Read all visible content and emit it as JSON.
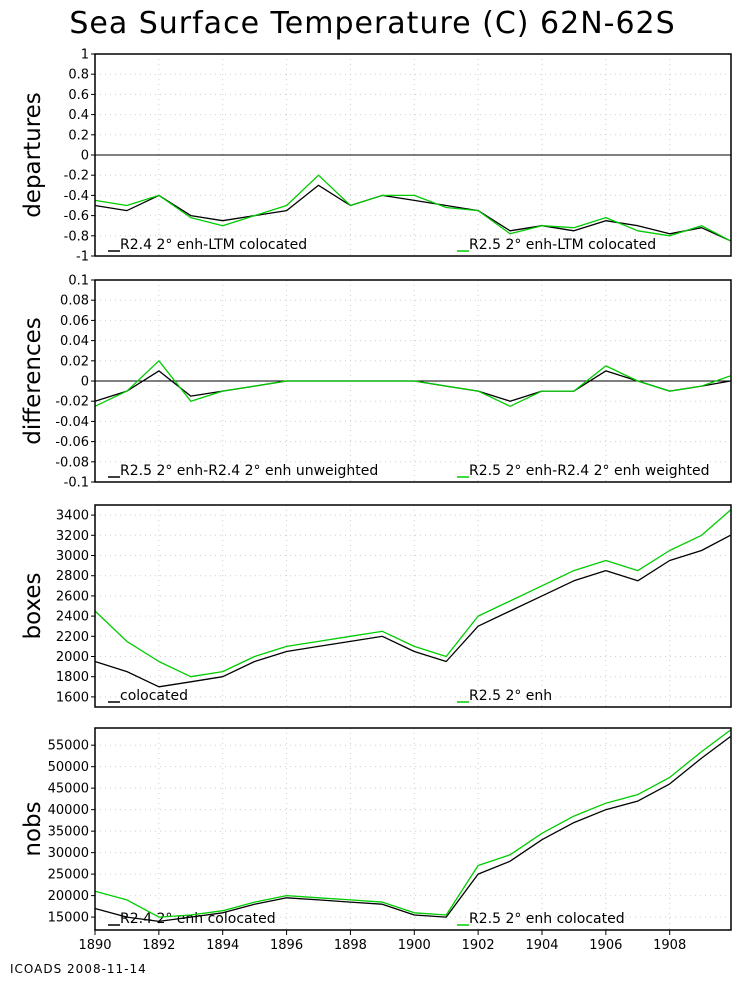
{
  "title": "Sea Surface Temperature (C) 62N-62S",
  "footer": "ICOADS 2008-11-14",
  "colors": {
    "black_series": "#000000",
    "green_series": "#00cc00"
  },
  "chart_data": [
    {
      "type": "line",
      "ylabel": "departures",
      "ylim": [
        -1,
        1
      ],
      "yticks": [
        -1,
        -0.8,
        -0.6,
        -0.4,
        -0.2,
        0,
        0.2,
        0.4,
        0.6,
        0.8,
        1
      ],
      "zero_line": true,
      "series": [
        {
          "name": "R2.4 2° enh-LTM colocated",
          "color": "#000000",
          "x": [
            1890,
            1891,
            1892,
            1893,
            1894,
            1895,
            1896,
            1897,
            1898,
            1899,
            1900,
            1901,
            1902,
            1903,
            1904,
            1905,
            1906,
            1907,
            1908,
            1909,
            1909.9
          ],
          "y": [
            -0.5,
            -0.55,
            -0.4,
            -0.6,
            -0.65,
            -0.6,
            -0.55,
            -0.3,
            -0.5,
            -0.4,
            -0.45,
            -0.5,
            -0.55,
            -0.75,
            -0.7,
            -0.75,
            -0.65,
            -0.7,
            -0.78,
            -0.72,
            -0.85
          ]
        },
        {
          "name": "R2.5 2° enh-LTM colocated",
          "color": "#00cc00",
          "x": [
            1890,
            1891,
            1892,
            1893,
            1894,
            1895,
            1896,
            1897,
            1898,
            1899,
            1900,
            1901,
            1902,
            1903,
            1904,
            1905,
            1906,
            1907,
            1908,
            1909,
            1909.9
          ],
          "y": [
            -0.45,
            -0.5,
            -0.4,
            -0.62,
            -0.7,
            -0.6,
            -0.5,
            -0.2,
            -0.5,
            -0.4,
            -0.4,
            -0.52,
            -0.55,
            -0.78,
            -0.7,
            -0.72,
            -0.62,
            -0.75,
            -0.8,
            -0.7,
            -0.85
          ]
        }
      ]
    },
    {
      "type": "line",
      "ylabel": "differences",
      "ylim": [
        -0.1,
        0.1
      ],
      "yticks": [
        -0.1,
        -0.08,
        -0.06,
        -0.04,
        -0.02,
        0,
        0.02,
        0.04,
        0.06,
        0.08,
        0.1
      ],
      "zero_line": true,
      "series": [
        {
          "name": "R2.5 2° enh-R2.4 2° enh unweighted",
          "color": "#000000",
          "x": [
            1890,
            1891,
            1892,
            1893,
            1894,
            1895,
            1896,
            1897,
            1898,
            1899,
            1900,
            1901,
            1902,
            1903,
            1904,
            1905,
            1906,
            1907,
            1908,
            1909,
            1909.9
          ],
          "y": [
            -0.02,
            -0.01,
            0.01,
            -0.015,
            -0.01,
            -0.005,
            0.0,
            0.0,
            0.0,
            0.0,
            0.0,
            -0.005,
            -0.01,
            -0.02,
            -0.01,
            -0.01,
            0.01,
            0.0,
            -0.01,
            -0.005,
            0.0
          ]
        },
        {
          "name": "R2.5 2° enh-R2.4 2° enh weighted",
          "color": "#00cc00",
          "x": [
            1890,
            1891,
            1892,
            1893,
            1894,
            1895,
            1896,
            1897,
            1898,
            1899,
            1900,
            1901,
            1902,
            1903,
            1904,
            1905,
            1906,
            1907,
            1908,
            1909,
            1909.9
          ],
          "y": [
            -0.025,
            -0.01,
            0.02,
            -0.02,
            -0.01,
            -0.005,
            0.0,
            0.0,
            0.0,
            0.0,
            0.0,
            -0.005,
            -0.01,
            -0.025,
            -0.01,
            -0.01,
            0.015,
            0.0,
            -0.01,
            -0.005,
            0.005
          ]
        }
      ]
    },
    {
      "type": "line",
      "ylabel": "boxes",
      "ylim": [
        1500,
        3500
      ],
      "yticks": [
        1600,
        1800,
        2000,
        2200,
        2400,
        2600,
        2800,
        3000,
        3200,
        3400
      ],
      "zero_line": false,
      "series": [
        {
          "name": "colocated",
          "color": "#000000",
          "x": [
            1890,
            1891,
            1892,
            1893,
            1894,
            1895,
            1896,
            1897,
            1898,
            1899,
            1900,
            1901,
            1902,
            1903,
            1904,
            1905,
            1906,
            1907,
            1908,
            1909,
            1909.9
          ],
          "y": [
            1950,
            1850,
            1700,
            1750,
            1800,
            1950,
            2050,
            2100,
            2150,
            2200,
            2050,
            1950,
            2300,
            2450,
            2600,
            2750,
            2850,
            2750,
            2950,
            3050,
            3200
          ]
        },
        {
          "name": "R2.5 2° enh",
          "color": "#00cc00",
          "x": [
            1890,
            1891,
            1892,
            1893,
            1894,
            1895,
            1896,
            1897,
            1898,
            1899,
            1900,
            1901,
            1902,
            1903,
            1904,
            1905,
            1906,
            1907,
            1908,
            1909,
            1909.9
          ],
          "y": [
            2450,
            2150,
            1950,
            1800,
            1850,
            2000,
            2100,
            2150,
            2200,
            2250,
            2100,
            2000,
            2400,
            2550,
            2700,
            2850,
            2950,
            2850,
            3050,
            3200,
            3450
          ]
        }
      ]
    },
    {
      "type": "line",
      "ylabel": "nobs",
      "ylim": [
        12000,
        59000
      ],
      "yticks": [
        15000,
        20000,
        25000,
        30000,
        35000,
        40000,
        45000,
        50000,
        55000
      ],
      "zero_line": false,
      "xticks": [
        1890,
        1892,
        1894,
        1896,
        1898,
        1900,
        1902,
        1904,
        1906,
        1908
      ],
      "series": [
        {
          "name": "R2.4 2° enh colocated",
          "color": "#000000",
          "x": [
            1890,
            1891,
            1892,
            1893,
            1894,
            1895,
            1896,
            1897,
            1898,
            1899,
            1900,
            1901,
            1902,
            1903,
            1904,
            1905,
            1906,
            1907,
            1908,
            1909,
            1909.9
          ],
          "y": [
            17000,
            15000,
            14000,
            15000,
            16000,
            18000,
            19500,
            19000,
            18500,
            18000,
            15500,
            15000,
            25000,
            28000,
            33000,
            37000,
            40000,
            42000,
            46000,
            52000,
            57000
          ]
        },
        {
          "name": "R2.5 2° enh colocated",
          "color": "#00cc00",
          "x": [
            1890,
            1891,
            1892,
            1893,
            1894,
            1895,
            1896,
            1897,
            1898,
            1899,
            1900,
            1901,
            1902,
            1903,
            1904,
            1905,
            1906,
            1907,
            1908,
            1909,
            1909.9
          ],
          "y": [
            21000,
            19000,
            15000,
            15500,
            16500,
            18500,
            20000,
            19500,
            19000,
            18500,
            16000,
            15500,
            27000,
            29500,
            34500,
            38500,
            41500,
            43500,
            47500,
            53500,
            58500
          ]
        }
      ]
    }
  ]
}
